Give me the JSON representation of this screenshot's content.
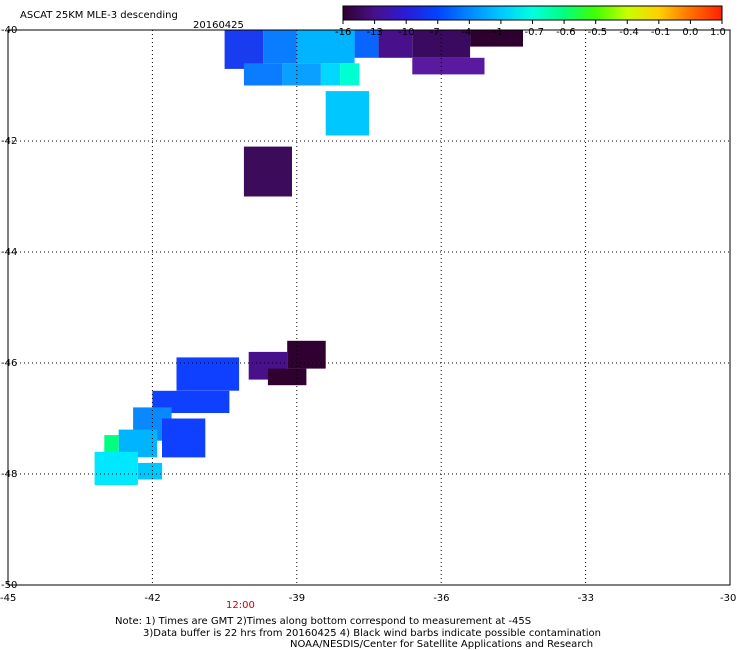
{
  "header": {
    "title": "ASCAT 25KM MLE-3 descending",
    "date": "20160425"
  },
  "colorbar": {
    "tick_labels": [
      "-16",
      "-13",
      "-10",
      "-7",
      "-4",
      "-1",
      "-0.7",
      "-0.6",
      "-0.5",
      "-0.4",
      "-0.1",
      "0.0",
      "1.0"
    ],
    "colors": [
      "#300030",
      "#48108a",
      "#2a1bd8",
      "#0044ff",
      "#0088ff",
      "#00c8ff",
      "#00ffe0",
      "#00ff80",
      "#40ff00",
      "#c8ff00",
      "#ffd000",
      "#ff7000",
      "#ff2000"
    ]
  },
  "axes": {
    "lat_labels": [
      "-40",
      "-42",
      "-44",
      "-46",
      "-48",
      "-50"
    ],
    "lon_labels": [
      "-45",
      "-42",
      "-39",
      "-36",
      "-33",
      "-30"
    ],
    "time_label": "12:00",
    "time_color": "#cc0000"
  },
  "note": {
    "line1": "Note: 1) Times are GMT 2)Times along bottom correspond to measurement at -45S",
    "line2": "3)Data buffer is 22 hrs from 20160425 4) Black wind barbs indicate possible contamination",
    "line3": "NOAA/NESDIS/Center for Satellite Applications and Research"
  },
  "map_data": {
    "lon_range": [
      -45,
      -30
    ],
    "lat_range": [
      -40,
      -50
    ],
    "cells": [
      {
        "lon": -40.5,
        "lat": -40.0,
        "w": 0.8,
        "h": 0.7,
        "color": "#1a3cf0"
      },
      {
        "lon": -39.7,
        "lat": -40.0,
        "w": 0.7,
        "h": 0.6,
        "color": "#0a7cff"
      },
      {
        "lon": -39.0,
        "lat": -40.0,
        "w": 1.2,
        "h": 0.6,
        "color": "#00b4ff"
      },
      {
        "lon": -37.8,
        "lat": -40.0,
        "w": 0.5,
        "h": 0.5,
        "color": "#0866ff"
      },
      {
        "lon": -37.3,
        "lat": -40.0,
        "w": 0.7,
        "h": 0.5,
        "color": "#48108a"
      },
      {
        "lon": -36.6,
        "lat": -40.0,
        "w": 1.2,
        "h": 0.5,
        "color": "#3a0a60"
      },
      {
        "lon": -35.4,
        "lat": -40.0,
        "w": 1.1,
        "h": 0.3,
        "color": "#2d0030"
      },
      {
        "lon": -40.1,
        "lat": -40.6,
        "w": 0.8,
        "h": 0.4,
        "color": "#0a7cff"
      },
      {
        "lon": -39.3,
        "lat": -40.6,
        "w": 0.8,
        "h": 0.4,
        "color": "#0aa0ff"
      },
      {
        "lon": -38.5,
        "lat": -40.6,
        "w": 0.4,
        "h": 0.4,
        "color": "#00d8ff"
      },
      {
        "lon": -38.1,
        "lat": -40.6,
        "w": 0.4,
        "h": 0.4,
        "color": "#00ffd0"
      },
      {
        "lon": -36.6,
        "lat": -40.5,
        "w": 1.5,
        "h": 0.3,
        "color": "#5a1aa0"
      },
      {
        "lon": -38.4,
        "lat": -41.1,
        "w": 0.9,
        "h": 0.8,
        "color": "#00c8ff"
      },
      {
        "lon": -40.1,
        "lat": -42.1,
        "w": 1.0,
        "h": 0.9,
        "color": "#3c0c5a"
      },
      {
        "lon": -39.2,
        "lat": -45.6,
        "w": 0.8,
        "h": 0.5,
        "color": "#300030"
      },
      {
        "lon": -40.0,
        "lat": -45.8,
        "w": 0.8,
        "h": 0.5,
        "color": "#48108a"
      },
      {
        "lon": -39.6,
        "lat": -46.1,
        "w": 0.8,
        "h": 0.3,
        "color": "#300030"
      },
      {
        "lon": -41.5,
        "lat": -45.9,
        "w": 1.3,
        "h": 0.6,
        "color": "#1040ff"
      },
      {
        "lon": -42.0,
        "lat": -46.5,
        "w": 1.6,
        "h": 0.4,
        "color": "#1040ff"
      },
      {
        "lon": -42.4,
        "lat": -46.8,
        "w": 0.8,
        "h": 0.6,
        "color": "#0a88ff"
      },
      {
        "lon": -41.8,
        "lat": -47.0,
        "w": 0.9,
        "h": 0.7,
        "color": "#1040ff"
      },
      {
        "lon": -42.7,
        "lat": -47.2,
        "w": 0.8,
        "h": 0.5,
        "color": "#00b4ff"
      },
      {
        "lon": -43.0,
        "lat": -47.3,
        "w": 0.3,
        "h": 0.4,
        "color": "#00ff80"
      },
      {
        "lon": -43.2,
        "lat": -47.6,
        "w": 0.9,
        "h": 0.6,
        "color": "#00e8ff"
      },
      {
        "lon": -42.3,
        "lat": -47.8,
        "w": 0.5,
        "h": 0.3,
        "color": "#00c8ff"
      }
    ]
  }
}
